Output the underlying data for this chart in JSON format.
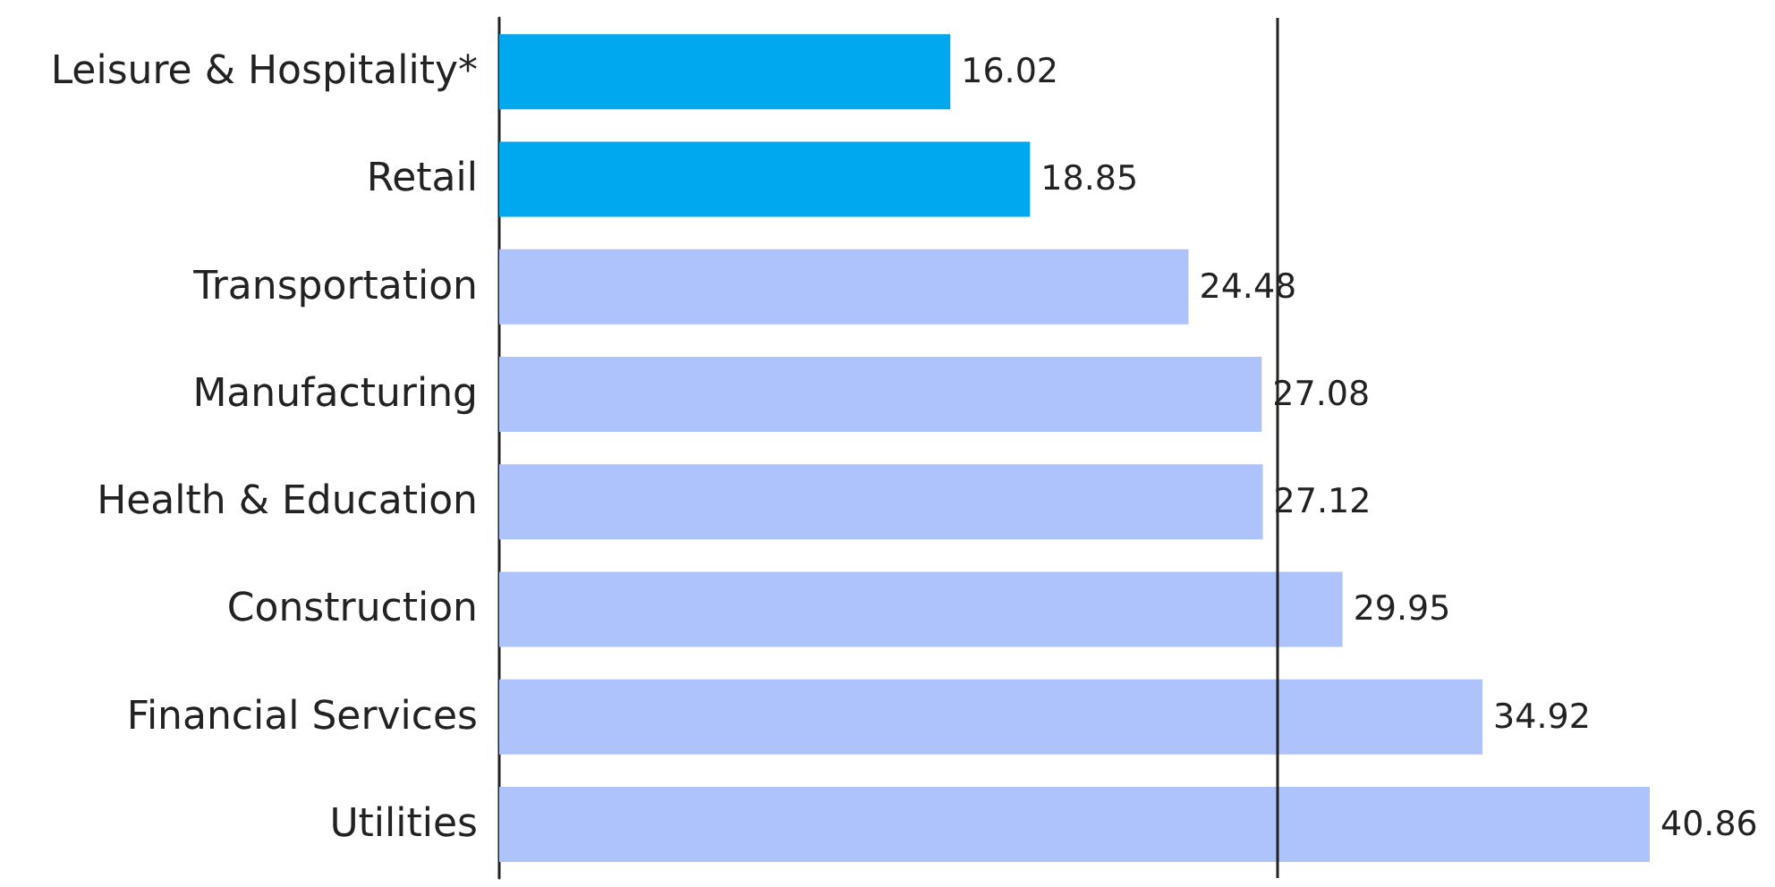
{
  "chart_data": {
    "type": "bar",
    "orientation": "horizontal",
    "categories": [
      "Leisure & Hospitality*",
      "Retail",
      "Transportation",
      "Manufacturing",
      "Health & Education",
      "Construction",
      "Financial Services",
      "Utilities"
    ],
    "values": [
      16.02,
      18.85,
      24.48,
      27.08,
      27.12,
      29.95,
      34.92,
      40.86
    ],
    "colors": [
      "#00a8f0",
      "#00a8f0",
      "#aec2fc",
      "#aec2fc",
      "#aec2fc",
      "#aec2fc",
      "#aec2fc",
      "#aec2fc"
    ],
    "data_labels": true,
    "ref_lines": [
      {
        "axis": "x",
        "value": 27.6,
        "color": "#222222"
      }
    ]
  }
}
